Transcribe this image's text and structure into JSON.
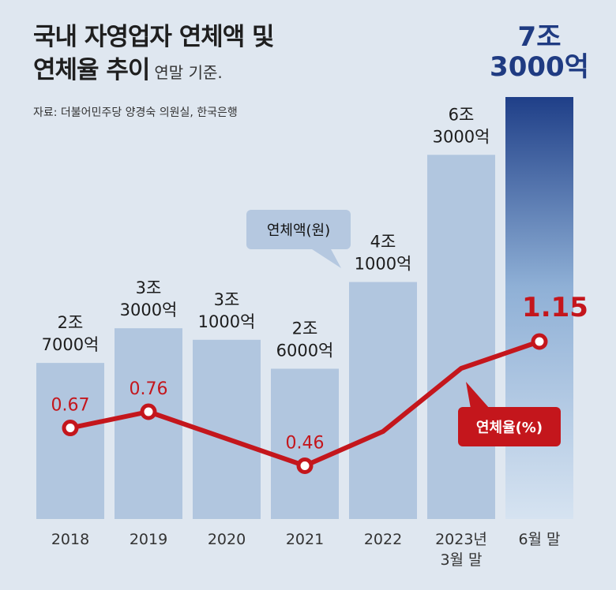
{
  "title_line1": "국내 자영업자 연체액 및",
  "title_line2": "연체율 추이",
  "basis": "연말 기준.",
  "source": "자료: 더불어민주당 양경숙 의원실, 한국은행",
  "colors": {
    "bar": "#b1c6df",
    "bar_last_top": "#1f3f88",
    "line": "#c4161c",
    "legend_bubble": "#b5c8e0"
  },
  "chart_data": {
    "type": "bar",
    "categories": [
      "2018",
      "2019",
      "2020",
      "2021",
      "2022",
      "2023년|3월 말",
      "6월 말"
    ],
    "series": [
      {
        "name": "연체액(원)",
        "values": [
          27000,
          33000,
          31000,
          26000,
          41000,
          63000,
          73000
        ],
        "labels": [
          "2조|7000억",
          "3조|3000억",
          "3조|1000억",
          "2조|6000억",
          "4조|1000억",
          "6조|3000억",
          "7조|3000억"
        ]
      },
      {
        "name": "연체율(%)",
        "type": "line",
        "values": [
          0.67,
          0.76,
          null,
          0.46,
          null,
          null,
          1.15
        ],
        "labels": [
          "0.67",
          "0.76",
          "",
          "0.46",
          "",
          "",
          "1.15"
        ]
      }
    ],
    "legend": [
      "연체액(원)",
      "연체율(%)"
    ]
  }
}
